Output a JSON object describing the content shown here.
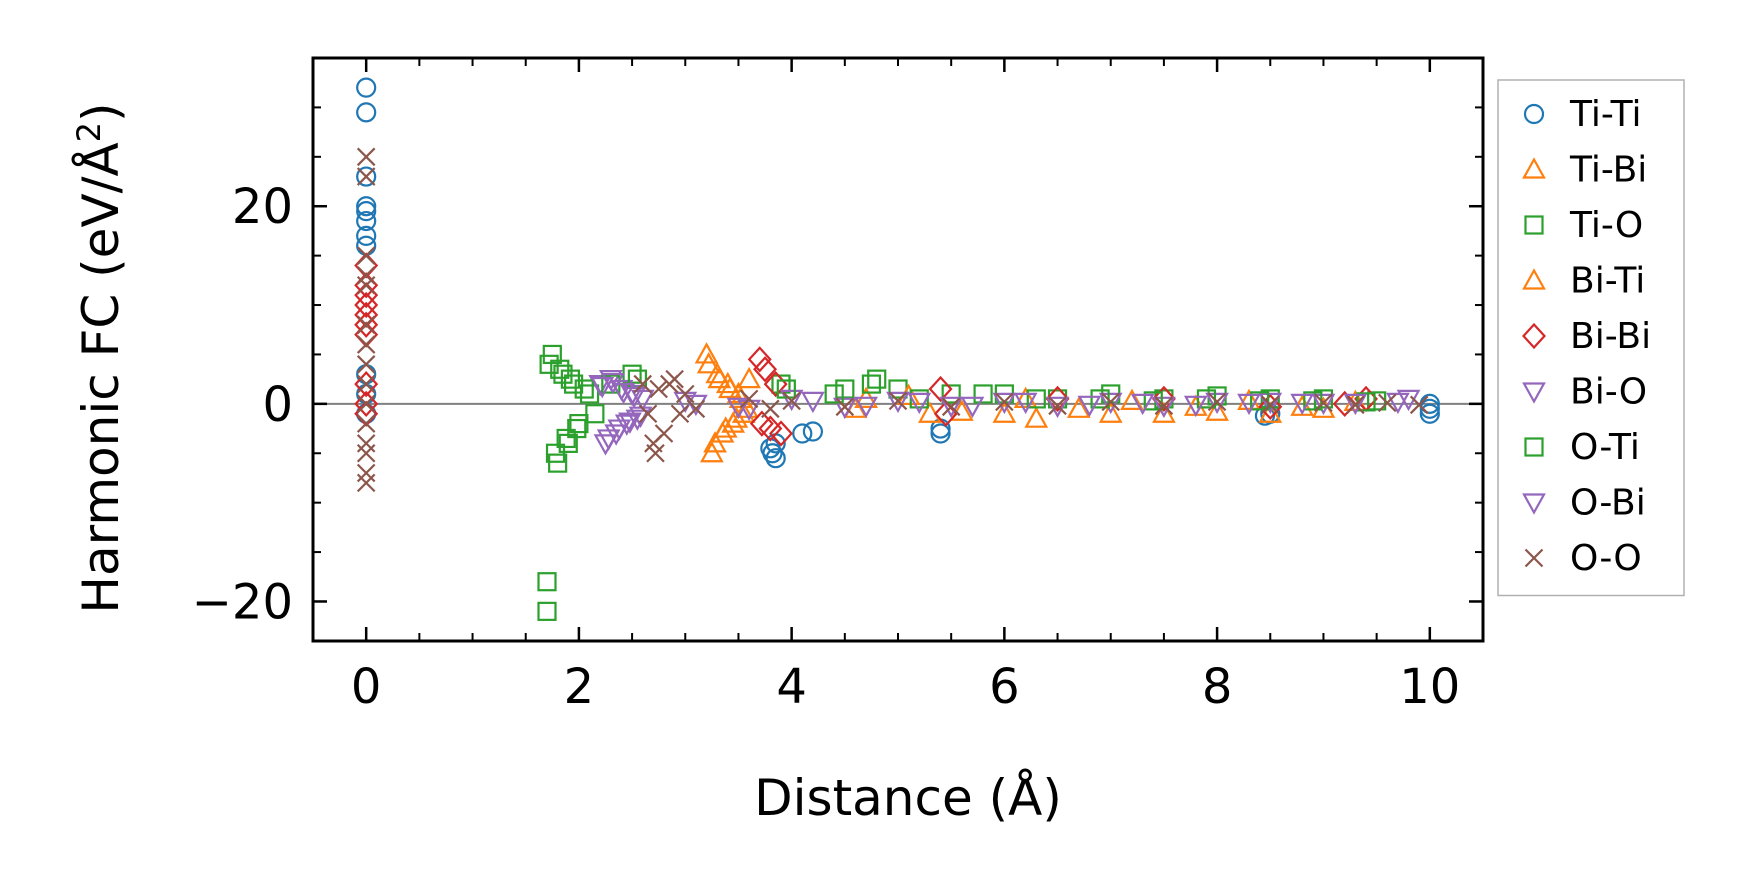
{
  "chart_data": {
    "type": "scatter",
    "xlabel": "Distance (Å)",
    "ylabel_main": "Harmonic FC (eV/Å",
    "ylabel_sup": "2",
    "ylabel_end": ")",
    "xlim": [
      -0.5,
      10.5
    ],
    "ylim": [
      -24,
      35
    ],
    "xticks": [
      0,
      2,
      4,
      6,
      8,
      10
    ],
    "xtick_labels": [
      "0",
      "2",
      "4",
      "6",
      "8",
      "10"
    ],
    "xminor": [
      0.5,
      1,
      1.5,
      2.5,
      3,
      3.5,
      4.5,
      5,
      5.5,
      6.5,
      7,
      7.5,
      8.5,
      9,
      9.5
    ],
    "yticks": [
      -20,
      0,
      20
    ],
    "ytick_labels": [
      "−20",
      "0",
      "20"
    ],
    "yminor": [
      -15,
      -10,
      -5,
      5,
      10,
      15,
      25,
      30
    ],
    "hline_y": 0,
    "hline_color": "#808080",
    "grid": false,
    "legend_position": "outside-right",
    "series": [
      {
        "name": "Ti-Ti",
        "marker": "circle",
        "color": "#1f77b4",
        "points": [
          [
            0,
            32
          ],
          [
            0,
            29.5
          ],
          [
            0,
            23
          ],
          [
            0,
            20
          ],
          [
            0,
            19.5
          ],
          [
            0,
            18.5
          ],
          [
            0,
            17
          ],
          [
            0,
            16
          ],
          [
            0,
            3
          ],
          [
            0,
            1
          ],
          [
            0,
            -1
          ],
          [
            3.8,
            -4.5
          ],
          [
            3.82,
            -5
          ],
          [
            3.85,
            -5.5
          ],
          [
            3.85,
            -4
          ],
          [
            4.1,
            -3
          ],
          [
            4.2,
            -2.8
          ],
          [
            5.4,
            -3
          ],
          [
            5.4,
            -2.5
          ],
          [
            8.5,
            -1
          ],
          [
            8.45,
            -1.2
          ],
          [
            10,
            -0.5
          ],
          [
            10,
            -1
          ],
          [
            10,
            0
          ]
        ]
      },
      {
        "name": "Ti-Bi",
        "marker": "triangle-up",
        "color": "#ff7f0e",
        "points": [
          [
            3.2,
            5
          ],
          [
            3.25,
            -5
          ],
          [
            3.3,
            3
          ],
          [
            3.35,
            -3
          ],
          [
            3.4,
            2
          ],
          [
            3.45,
            -2
          ],
          [
            3.5,
            1
          ],
          [
            3.55,
            -1
          ],
          [
            3.6,
            2.5
          ],
          [
            4.7,
            0.5
          ],
          [
            5.3,
            -1
          ],
          [
            6.0,
            -1
          ],
          [
            6.3,
            -1.5
          ],
          [
            7.0,
            -1
          ],
          [
            7.5,
            -1
          ],
          [
            8.0,
            -0.8
          ],
          [
            8.5,
            -1
          ],
          [
            9.0,
            -0.5
          ]
        ]
      },
      {
        "name": "Ti-O",
        "marker": "square",
        "color": "#2ca02c",
        "points": [
          [
            1.7,
            -18
          ],
          [
            1.7,
            -21
          ],
          [
            1.75,
            5
          ],
          [
            1.8,
            -6
          ],
          [
            1.85,
            3
          ],
          [
            1.9,
            -4
          ],
          [
            1.95,
            2
          ],
          [
            2.0,
            -2
          ],
          [
            2.1,
            1
          ],
          [
            2.5,
            3
          ],
          [
            3.9,
            2
          ],
          [
            4.5,
            1.5
          ],
          [
            4.8,
            2.5
          ],
          [
            5.0,
            1.5
          ],
          [
            5.5,
            1
          ],
          [
            6.0,
            1
          ],
          [
            6.5,
            0.5
          ],
          [
            7.0,
            1
          ],
          [
            7.5,
            0.5
          ],
          [
            8.0,
            0.8
          ],
          [
            8.5,
            0.5
          ],
          [
            9.0,
            0.5
          ],
          [
            9.5,
            0.3
          ]
        ]
      },
      {
        "name": "Bi-Ti",
        "marker": "triangle-up",
        "color": "#ff7f0e",
        "points": [
          [
            3.22,
            4
          ],
          [
            3.28,
            -4
          ],
          [
            3.32,
            2.5
          ],
          [
            3.38,
            -2.5
          ],
          [
            3.42,
            1.5
          ],
          [
            3.48,
            -1.5
          ],
          [
            3.52,
            0.5
          ],
          [
            3.58,
            -0.5
          ],
          [
            4.6,
            -0.5
          ],
          [
            5.1,
            0.8
          ],
          [
            5.6,
            -0.8
          ],
          [
            6.2,
            0.5
          ],
          [
            6.7,
            -0.5
          ],
          [
            7.2,
            0.3
          ],
          [
            7.8,
            -0.3
          ],
          [
            8.3,
            0.3
          ],
          [
            8.8,
            -0.3
          ],
          [
            9.3,
            0.2
          ]
        ]
      },
      {
        "name": "Bi-Bi",
        "marker": "diamond",
        "color": "#d62728",
        "points": [
          [
            0,
            14
          ],
          [
            0,
            12
          ],
          [
            0,
            11
          ],
          [
            0,
            10
          ],
          [
            0,
            9
          ],
          [
            0,
            8
          ],
          [
            0,
            7
          ],
          [
            0,
            2
          ],
          [
            0,
            0
          ],
          [
            0,
            -1
          ],
          [
            3.7,
            4.5
          ],
          [
            3.72,
            -2
          ],
          [
            3.75,
            3.5
          ],
          [
            3.8,
            -2.5
          ],
          [
            3.85,
            2
          ],
          [
            3.9,
            -3
          ],
          [
            5.4,
            1.5
          ],
          [
            5.45,
            -1
          ],
          [
            6.5,
            0.5
          ],
          [
            7.5,
            0.5
          ],
          [
            8.5,
            -0.3
          ],
          [
            9.2,
            0
          ],
          [
            9.4,
            0.5
          ]
        ]
      },
      {
        "name": "Bi-O",
        "marker": "triangle-down",
        "color": "#9467bd",
        "points": [
          [
            2.2,
            2
          ],
          [
            2.25,
            -4
          ],
          [
            2.3,
            2.5
          ],
          [
            2.35,
            -3
          ],
          [
            2.4,
            1.5
          ],
          [
            2.45,
            -2
          ],
          [
            2.5,
            1
          ],
          [
            2.55,
            -1.5
          ],
          [
            2.6,
            0.5
          ],
          [
            3.1,
            0
          ],
          [
            3.6,
            -0.5
          ],
          [
            4.0,
            0.5
          ],
          [
            4.5,
            -0.3
          ],
          [
            5.0,
            0.3
          ],
          [
            5.5,
            -0.2
          ],
          [
            6.0,
            0.2
          ],
          [
            6.5,
            -0.2
          ],
          [
            7.0,
            0.2
          ],
          [
            7.5,
            -0.2
          ],
          [
            8.0,
            0.2
          ],
          [
            8.5,
            0.2
          ],
          [
            9.0,
            0.1
          ],
          [
            9.8,
            0.5
          ]
        ]
      },
      {
        "name": "O-Ti",
        "marker": "square",
        "color": "#2ca02c",
        "points": [
          [
            1.72,
            4
          ],
          [
            1.78,
            -5
          ],
          [
            1.82,
            3.5
          ],
          [
            1.88,
            -3.5
          ],
          [
            1.92,
            2.5
          ],
          [
            1.98,
            -2.5
          ],
          [
            2.05,
            1.5
          ],
          [
            2.15,
            -1
          ],
          [
            2.3,
            2
          ],
          [
            2.55,
            2.5
          ],
          [
            3.95,
            1.5
          ],
          [
            4.4,
            1
          ],
          [
            4.75,
            2
          ],
          [
            5.2,
            0.5
          ],
          [
            5.8,
            1
          ],
          [
            6.3,
            0.5
          ],
          [
            6.9,
            0.5
          ],
          [
            7.4,
            0.3
          ],
          [
            7.9,
            0.5
          ],
          [
            8.4,
            0.3
          ],
          [
            8.9,
            0.3
          ],
          [
            9.4,
            0.2
          ]
        ]
      },
      {
        "name": "O-Bi",
        "marker": "triangle-down",
        "color": "#9467bd",
        "points": [
          [
            2.22,
            1.8
          ],
          [
            2.28,
            -3.5
          ],
          [
            2.32,
            2.2
          ],
          [
            2.38,
            -2.5
          ],
          [
            2.42,
            1.2
          ],
          [
            2.48,
            -1.8
          ],
          [
            2.52,
            0.8
          ],
          [
            2.58,
            -1.2
          ],
          [
            3.0,
            0.3
          ],
          [
            3.5,
            -0.3
          ],
          [
            4.2,
            0.3
          ],
          [
            4.7,
            -0.2
          ],
          [
            5.2,
            0.2
          ],
          [
            5.7,
            -0.2
          ],
          [
            6.2,
            0.2
          ],
          [
            6.8,
            -0.1
          ],
          [
            7.3,
            0.1
          ],
          [
            7.8,
            -0.1
          ],
          [
            8.3,
            0.1
          ],
          [
            8.8,
            0.1
          ],
          [
            9.3,
            0.1
          ],
          [
            9.7,
            0.2
          ]
        ]
      },
      {
        "name": "O-O",
        "marker": "x",
        "color": "#8c564b",
        "points": [
          [
            0,
            25
          ],
          [
            0,
            23
          ],
          [
            0,
            15
          ],
          [
            0,
            13
          ],
          [
            0,
            12
          ],
          [
            0,
            8
          ],
          [
            0,
            6
          ],
          [
            0,
            4
          ],
          [
            0,
            2
          ],
          [
            0,
            0
          ],
          [
            0,
            -2
          ],
          [
            0,
            -4
          ],
          [
            0,
            -5
          ],
          [
            0,
            -7
          ],
          [
            0,
            -8
          ],
          [
            2.6,
            2
          ],
          [
            2.65,
            -1
          ],
          [
            2.7,
            -4
          ],
          [
            2.72,
            -5
          ],
          [
            2.75,
            1.5
          ],
          [
            2.8,
            -3
          ],
          [
            2.85,
            2
          ],
          [
            2.9,
            2.5
          ],
          [
            2.95,
            -1
          ],
          [
            3.0,
            1
          ],
          [
            3.1,
            -0.5
          ],
          [
            3.6,
            0.5
          ],
          [
            3.8,
            -0.5
          ],
          [
            4.0,
            0.3
          ],
          [
            4.5,
            -0.3
          ],
          [
            5.0,
            0.3
          ],
          [
            5.5,
            -0.3
          ],
          [
            6.0,
            0.2
          ],
          [
            6.5,
            -0.2
          ],
          [
            7.0,
            0.2
          ],
          [
            7.5,
            -0.2
          ],
          [
            8.0,
            0.2
          ],
          [
            8.5,
            -0.1
          ],
          [
            9.0,
            0.1
          ],
          [
            9.3,
            -0.1
          ],
          [
            9.6,
            0.1
          ],
          [
            9.9,
            -0.1
          ]
        ]
      }
    ]
  }
}
